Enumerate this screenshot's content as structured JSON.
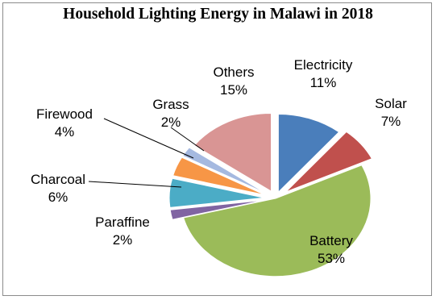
{
  "chart_data": {
    "type": "pie",
    "title": "Household Lighting Energy in Malawi in 2018",
    "slices": [
      {
        "name": "Electricity",
        "value": 11,
        "label": "11%",
        "color": "#4a7ebb"
      },
      {
        "name": "Solar",
        "value": 7,
        "label": "7%",
        "color": "#c0504d"
      },
      {
        "name": "Battery",
        "value": 53,
        "label": "53%",
        "color": "#9bbb59"
      },
      {
        "name": "Paraffine",
        "value": 2,
        "label": "2%",
        "color": "#8064a2"
      },
      {
        "name": "Charcoal",
        "value": 6,
        "label": "6%",
        "color": "#4bacc6"
      },
      {
        "name": "Firewood",
        "value": 4,
        "label": "4%",
        "color": "#f79646"
      },
      {
        "name": "Grass",
        "value": 2,
        "label": "2%",
        "color": "#a5b9e0"
      },
      {
        "name": "Others",
        "value": 15,
        "label": "15%",
        "color": "#d99594"
      }
    ],
    "legend": "none",
    "data_labels": "outside"
  }
}
